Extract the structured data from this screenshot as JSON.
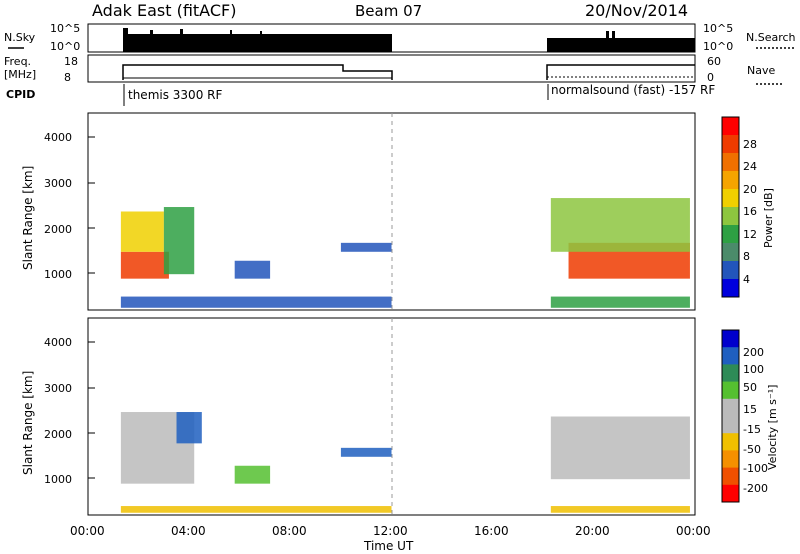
{
  "header": {
    "station": "Adak East (fitACF)",
    "beam": "Beam 07",
    "date": "20/Nov/2014"
  },
  "panels": {
    "nsky_label": "N.Sky",
    "nsky_ticks": [
      "10^5",
      "10^0"
    ],
    "nsearch_label": "N.Search",
    "nsearch_ticks": [
      "10^5",
      "10^0"
    ],
    "freq_label_1": "Freq.",
    "freq_label_2": "[MHz]",
    "freq_ticks": [
      "18",
      "8"
    ],
    "nave_label": "Nave",
    "nave_ticks": [
      "60",
      "0"
    ],
    "cpid_label": "CPID",
    "cpid_segments": [
      {
        "text": "themis 3300 RF",
        "start_hour": 1.3
      },
      {
        "text": "normalsound (fast) -157 RF",
        "start_hour": 18.3
      }
    ]
  },
  "colors": {
    "power_scale": [
      "#0000dd",
      "#2255bb",
      "#4b8b6a",
      "#2ea043",
      "#8dc63f",
      "#f0d000",
      "#f5a400",
      "#f07000",
      "#ef3b00",
      "#ff0000"
    ],
    "velocity_scale": [
      "#ff0000",
      "#f05000",
      "#f59000",
      "#f0c000",
      "#bbbbbb",
      "#bbbbbb",
      "#55c030",
      "#2e8b57",
      "#1f5fc0",
      "#0000cc"
    ]
  },
  "chart_data": [
    {
      "type": "heatmap",
      "name": "power",
      "ylabel": "Slant Range [km]",
      "yticks": [
        "4000",
        "3000",
        "2000",
        "1000"
      ],
      "ylim": [
        200,
        4600
      ],
      "xlim_hours": [
        0,
        24
      ],
      "colorbar_label": "Power [dB]",
      "colorbar_ticks": [
        "28",
        "24",
        "20",
        "16",
        "12",
        "8",
        "4"
      ],
      "colorbar_range": [
        0,
        32
      ],
      "regions": [
        {
          "t0": 1.3,
          "t1": 3.2,
          "r0": 900,
          "r1": 1500,
          "value": 28
        },
        {
          "t0": 1.3,
          "t1": 3.0,
          "r0": 1500,
          "r1": 2400,
          "value": 18
        },
        {
          "t0": 3.0,
          "t1": 4.2,
          "r0": 1000,
          "r1": 2500,
          "value": 10
        },
        {
          "t0": 5.8,
          "t1": 7.2,
          "r0": 900,
          "r1": 1300,
          "value": 4
        },
        {
          "t0": 10.0,
          "t1": 12.0,
          "r0": 1500,
          "r1": 1700,
          "value": 4
        },
        {
          "t0": 1.3,
          "t1": 12.0,
          "r0": 250,
          "r1": 500,
          "value": 4
        },
        {
          "t0": 19.0,
          "t1": 23.8,
          "r0": 900,
          "r1": 1700,
          "value": 28
        },
        {
          "t0": 18.3,
          "t1": 23.8,
          "r0": 1500,
          "r1": 2700,
          "value": 14
        },
        {
          "t0": 18.3,
          "t1": 23.8,
          "r0": 250,
          "r1": 500,
          "value": 12
        }
      ]
    },
    {
      "type": "heatmap",
      "name": "velocity",
      "ylabel": "Slant Range [km]",
      "yticks": [
        "4000",
        "3000",
        "2000",
        "1000"
      ],
      "ylim": [
        200,
        4600
      ],
      "xlim_hours": [
        0,
        24
      ],
      "xticks": [
        "00:00",
        "04:00",
        "08:00",
        "12:00",
        "16:00",
        "20:00",
        "00:00"
      ],
      "xlabel": "Time UT",
      "colorbar_label": "Velocity [m s⁻¹]",
      "colorbar_ticks": [
        "200",
        "100",
        "50",
        "15",
        "-15",
        "-50",
        "-100",
        "-200"
      ],
      "regions": [
        {
          "t0": 1.3,
          "t1": 4.2,
          "r0": 900,
          "r1": 2500,
          "value": 0
        },
        {
          "t0": 3.5,
          "t1": 4.5,
          "r0": 1800,
          "r1": 2500,
          "value": 150
        },
        {
          "t0": 5.8,
          "t1": 7.2,
          "r0": 900,
          "r1": 1300,
          "value": 40
        },
        {
          "t0": 10.0,
          "t1": 12.0,
          "r0": 1500,
          "r1": 1700,
          "value": 150
        },
        {
          "t0": 1.3,
          "t1": 12.0,
          "r0": 250,
          "r1": 400,
          "value": -40
        },
        {
          "t0": 18.3,
          "t1": 23.8,
          "r0": 1000,
          "r1": 2400,
          "value": 0
        },
        {
          "t0": 18.3,
          "t1": 23.8,
          "r0": 250,
          "r1": 400,
          "value": -40
        }
      ]
    }
  ]
}
